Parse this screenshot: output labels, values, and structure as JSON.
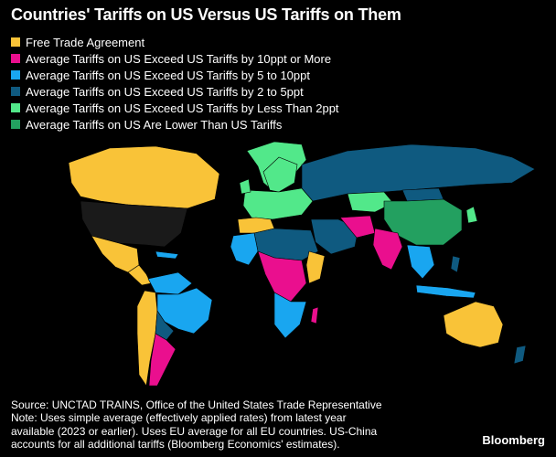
{
  "title": "Countries' Tariffs on US Versus US Tariffs on Them",
  "legend": [
    {
      "label": "Free Trade Agreement",
      "color": "#f9c338"
    },
    {
      "label": "Average Tariffs on US Exceed US Tariffs by 10ppt or More",
      "color": "#ea0f8e"
    },
    {
      "label": "Average Tariffs on US Exceed US Tariffs by 5 to 10ppt",
      "color": "#19a6f0"
    },
    {
      "label": "Average Tariffs on US Exceed US Tariffs by 2 to 5ppt",
      "color": "#0f5a80"
    },
    {
      "label": "Average Tariffs on US Exceed US Tariffs by Less Than 2ppt",
      "color": "#52e88a"
    },
    {
      "label": "Average Tariffs on US Are Lower Than US Tariffs",
      "color": "#23a060"
    }
  ],
  "nodata_color": "#1a1a1a",
  "source": "Source: UNCTAD TRAINS, Office of the United States Trade Representative",
  "note_lines": [
    "Note: Uses simple average (effectively applied rates) from latest year",
    "available (2023 or earlier). Uses EU average for all EU countries. US-China",
    "accounts for all additional tariffs (Bloomberg Economics' estimates)."
  ],
  "brand": "Bloomberg"
}
